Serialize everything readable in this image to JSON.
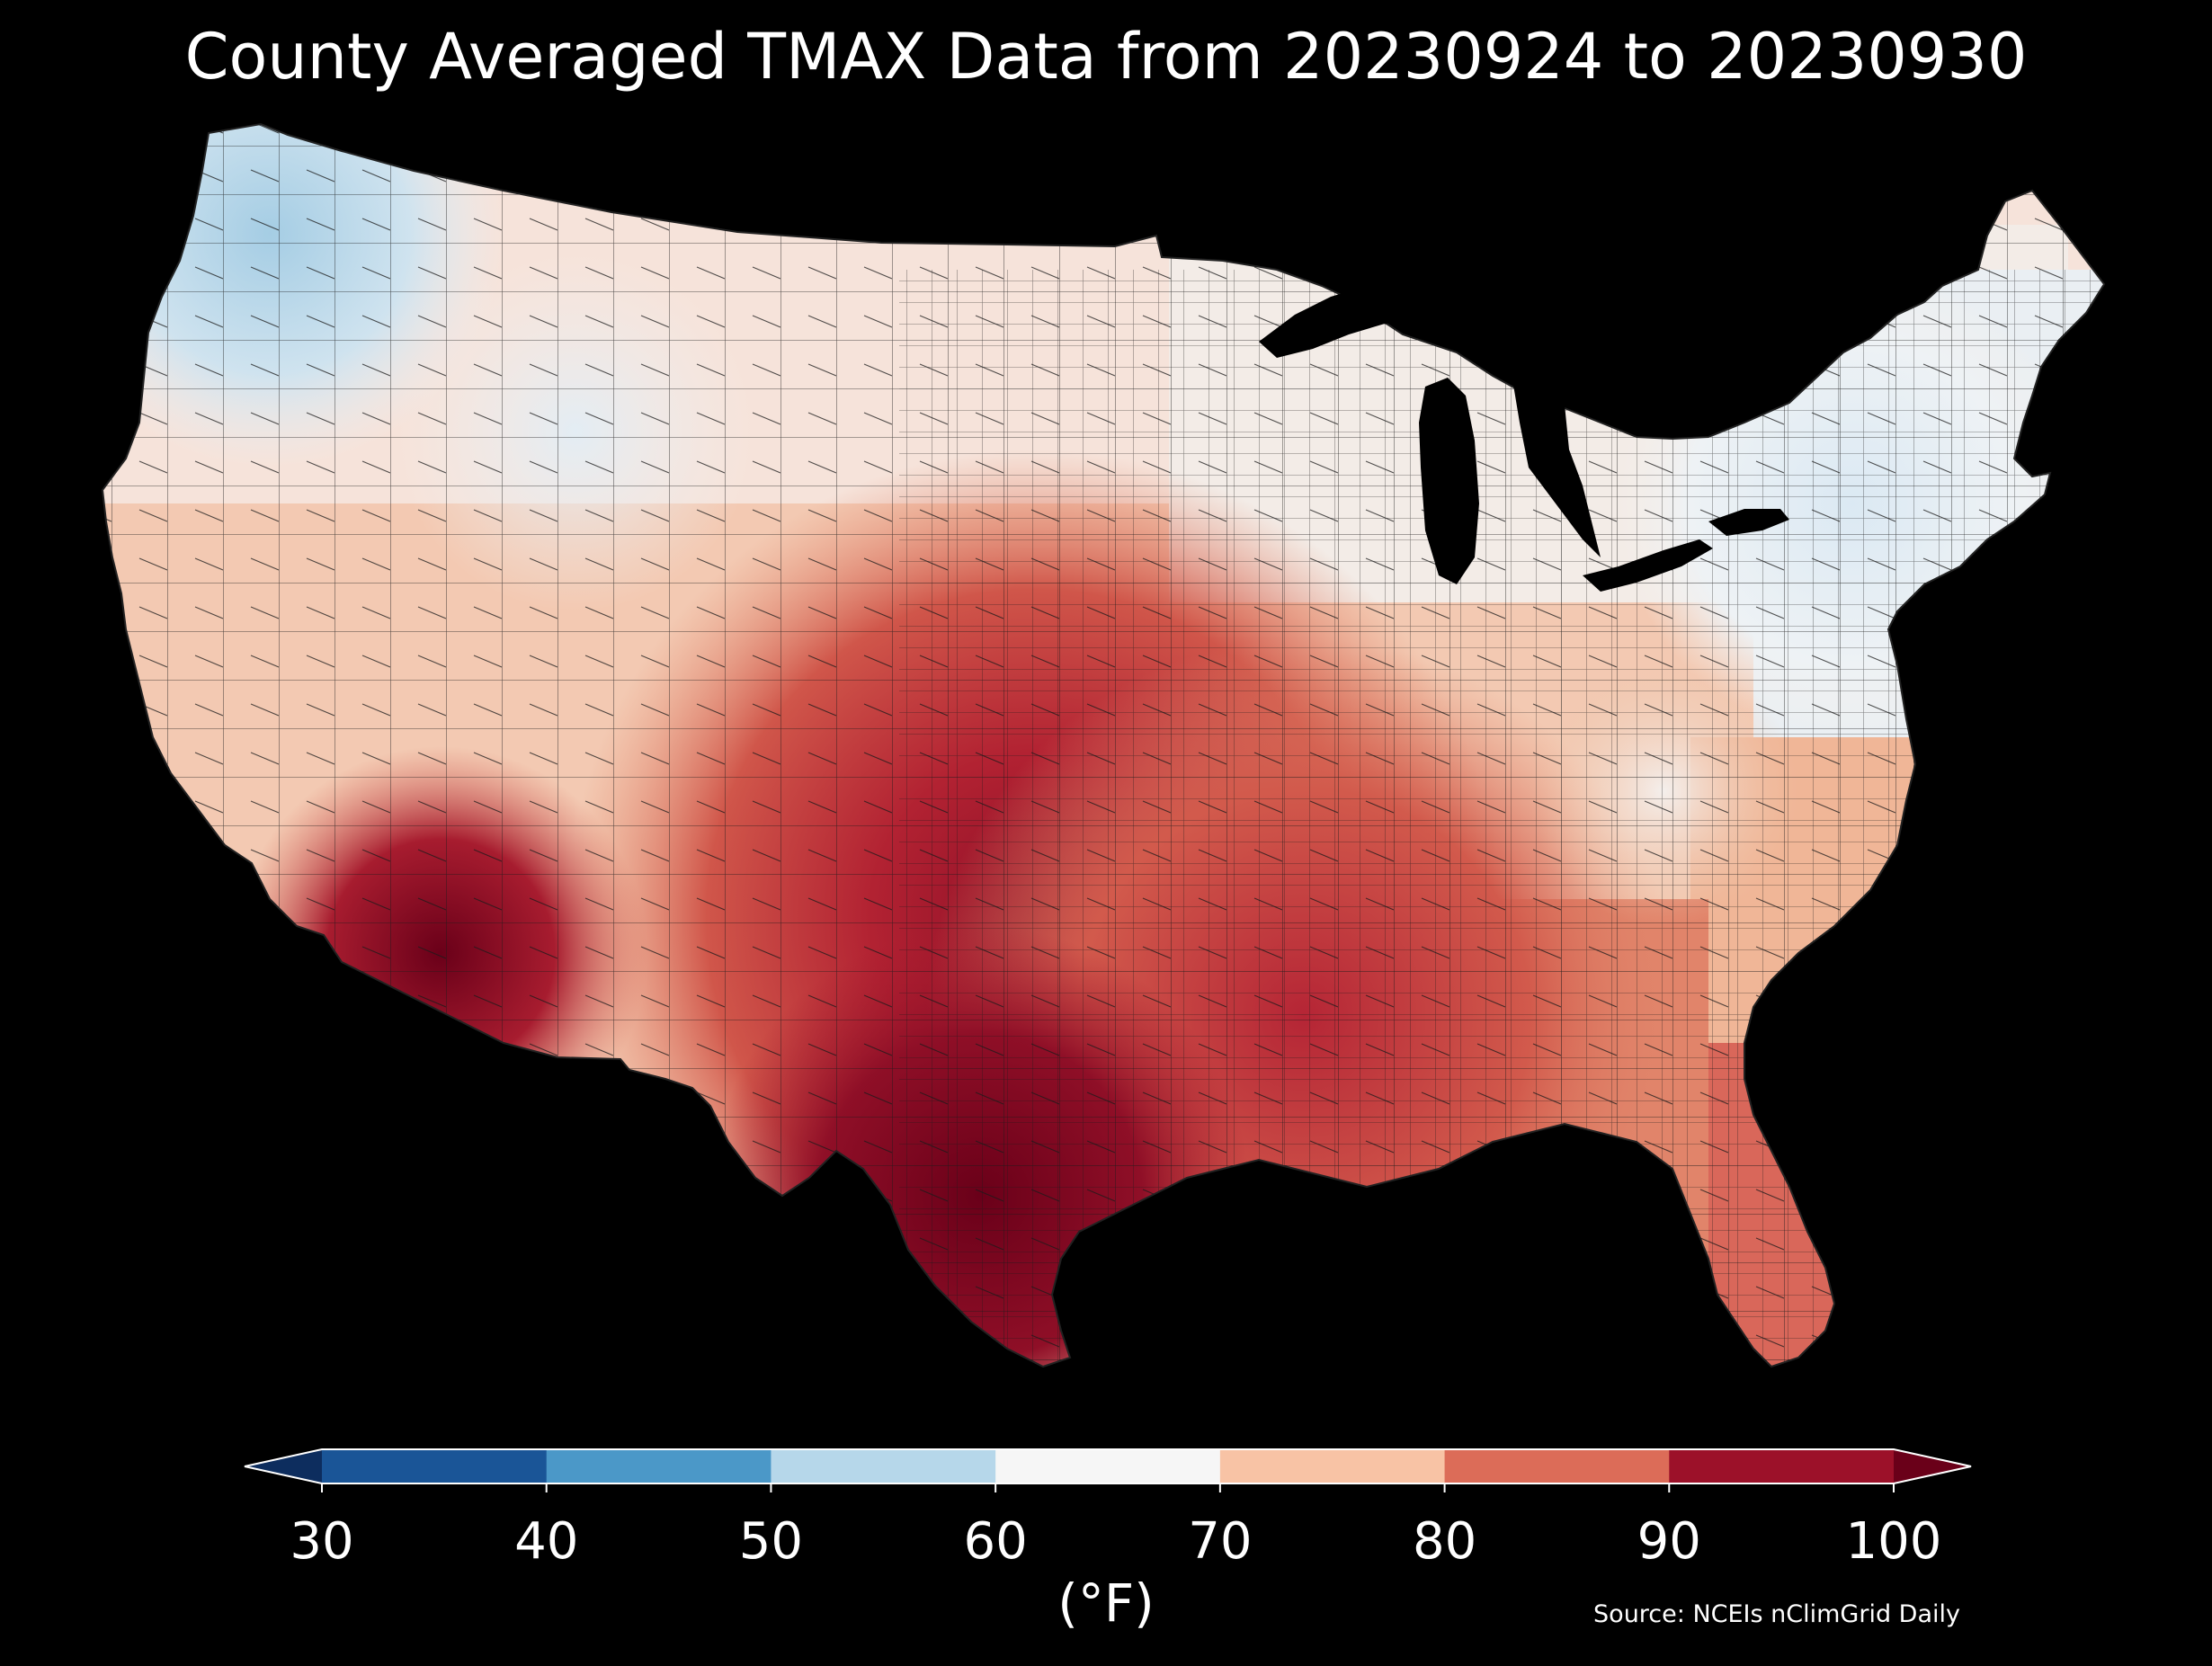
{
  "map": {
    "title": "County Averaged TMAX Data from 20230924 to 20230930",
    "region": "Contiguous United States",
    "variable": "TMAX"
  },
  "colorbar": {
    "unit_label": "(°F)",
    "ticks": [
      "30",
      "40",
      "50",
      "60",
      "70",
      "80",
      "90",
      "100"
    ],
    "bins": [
      {
        "range": "<30",
        "color": "#0d2d5e"
      },
      {
        "range": "30-40",
        "color": "#1a5597"
      },
      {
        "range": "40-50",
        "color": "#4b98c8"
      },
      {
        "range": "50-60",
        "color": "#b6d7ea"
      },
      {
        "range": "60-70",
        "color": "#f6f6f6"
      },
      {
        "range": "70-80",
        "color": "#f8c3a5"
      },
      {
        "range": "80-90",
        "color": "#dc6c58"
      },
      {
        "range": "90-100",
        "color": "#9c1129"
      },
      {
        "range": ">100",
        "color": "#6a0019"
      }
    ]
  },
  "source": "Source: NCEIs nClimGrid Daily",
  "colors": {
    "background": "#000000",
    "outline": "#1a1a1a",
    "text": "#ffffff"
  }
}
